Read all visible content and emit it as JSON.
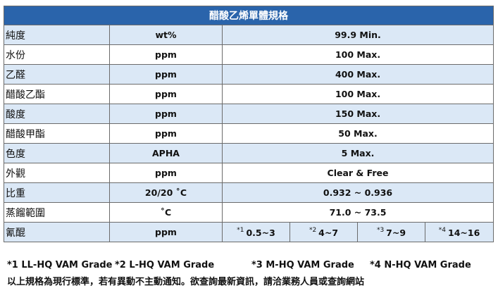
{
  "title": "醋酸乙烯單體規格",
  "rows": [
    [
      "純度",
      "wt%",
      "99.9 Min."
    ],
    [
      "水份",
      "ppm",
      "100 Max."
    ],
    [
      "乙醛",
      "ppm",
      "400 Max."
    ],
    [
      "醋酸乙酯",
      "ppm",
      "100 Max."
    ],
    [
      "酸度",
      "ppm",
      "150 Max."
    ],
    [
      "醋酸甲酯",
      "ppm",
      "50 Max."
    ],
    [
      "色度",
      "APHA",
      "5 Max."
    ],
    [
      "外觀",
      "ppm",
      "Clear & Free"
    ],
    [
      "比重",
      "20/20 ˚C",
      "0.932 ~ 0.936"
    ],
    [
      "蒸餾範圍",
      "˚C",
      "71.0 ~ 73.5"
    ]
  ],
  "last_row": {
    "name": "氰醌",
    "unit": "ppm",
    "grades": [
      {
        "sup": "*1",
        "text": "0.5~3"
      },
      {
        "sup": "*2",
        "text": "4~7"
      },
      {
        "sup": "*3",
        "text": "7~9"
      },
      {
        "sup": "*4",
        "text": "14~16"
      }
    ]
  },
  "footnotes": [
    "*1 LL-HQ VAM Grade",
    "*2 L-HQ VAM Grade",
    "*3 M-HQ VAM Grade",
    "*4 N-HQ VAM Grade"
  ],
  "note": "以上規格為現行標準，若有異動不主動通知。欲查詢最新資訊，請洽業務人員或查詢網站"
}
